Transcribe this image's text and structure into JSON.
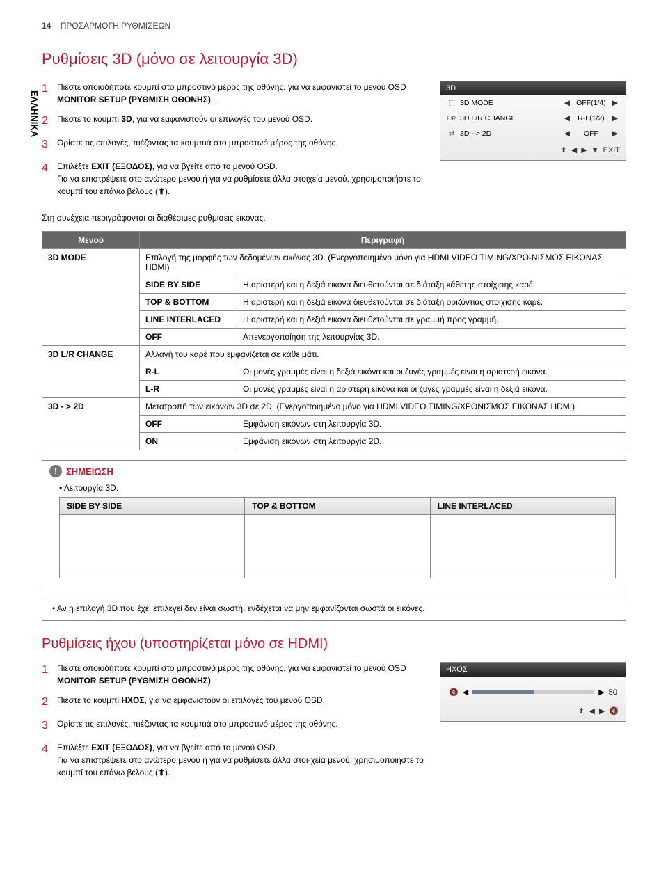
{
  "page": {
    "number": "14",
    "section": "ΠΡΟΣΑΡΜΟΓΗ ΡΥΘΜΙΣΕΩΝ"
  },
  "side_tab": "ΕΛΛΗΝΙΚΑ",
  "h1": "Ρυθμίσεις 3D (μόνο σε λειτουργία 3D)",
  "steps3d": [
    "Πιέστε οποιοδήποτε κουμπί στο μπροστινό μέρος της οθόνης, για να εμφανιστεί το μενού OSD ",
    "Πιέστε το κουμπί ",
    "Ορίστε τις επιλογές, πιέζοντας τα κουμπιά στο μπροστινό μέρος της οθόνης.",
    "Επιλέξτε "
  ],
  "steps3d_bold": {
    "s1b": "MONITOR SETUP (ΡΥΘΜΙΣΗ ΟΘΟΝΗΣ)",
    "s1c": ".",
    "s2b": "3D",
    "s2c": ", για να εμφανιστούν οι επιλογές του μενού OSD.",
    "s4b": "EXIT (ΕΞΟΔΟΣ)",
    "s4c": ", για να βγείτε από το μενού OSD.",
    "s4d": "Για να επιστρέψετε στο ανώτερο μενού ή για να ρυθμίσετε άλλα στοιχεία μενού, χρησιμοποιήστε το κουμπί του επάνω βέλους (",
    "s4e": ")."
  },
  "intro_after": "Στη συνέχεια περιγράφονται οι διαθέσιμες ρυθμίσεις εικόνας.",
  "osd3d": {
    "title": "3D",
    "rows": [
      {
        "icon": "⬚",
        "label": "3D MODE",
        "value": "OFF(1/4)"
      },
      {
        "icon": "L/R",
        "label": "3D L/R CHANGE",
        "value": "R-L(1/2)"
      },
      {
        "icon": "⇄",
        "label": "3D - > 2D",
        "value": "OFF"
      }
    ],
    "footer": {
      "exit": "EXIT"
    }
  },
  "table": {
    "h_menu": "Μενού",
    "h_desc": "Περιγραφή",
    "r1_menu": "3D MODE",
    "r1_desc": "Επιλογή της μορφής των δεδομένων εικόνας 3D. (Ενεργοποιημένο μόνο για HDMI VIDEO TIMING/ΧΡΟ-ΝΙΣΜΟΣ ΕΙΚΟΝΑΣ HDMI)",
    "r1_sbs": "SIDE BY SIDE",
    "r1_sbs_d": "Η αριστερή και η δεξιά εικόνα διευθετούνται σε διάταξη κάθετης στοίχισης καρέ.",
    "r1_tb": "TOP & BOTTOM",
    "r1_tb_d": "Η αριστερή και η δεξιά εικόνα διευθετούνται σε διάταξη οριζόντιας στοίχισης καρέ.",
    "r1_li": "LINE INTERLACED",
    "r1_li_d": "Η αριστερή και η δεξιά εικόνα διευθετούνται σε γραμμή προς γραμμή.",
    "r1_off": "OFF",
    "r1_off_d": "Απενεργοποίηση της λειτουργίας 3D.",
    "r2_menu": "3D L/R CHANGE",
    "r2_desc": "Αλλαγή του καρέ που εμφανίζεται σε κάθε μάτι.",
    "r2_rl": "R-L",
    "r2_rl_d": "Οι μονές γραμμές είναι η δεξιά εικόνα και οι ζυγές γραμμές είναι η αριστερή εικόνα.",
    "r2_lr": "L-R",
    "r2_lr_d": "Οι μονές γραμμές είναι η αριστερή εικόνα και οι ζυγές γραμμές είναι η δεξιά εικόνα.",
    "r3_menu": "3D - > 2D",
    "r3_desc": "Μετατροπή των εικόνων 3D σε 2D. (Ενεργοποιημένο μόνο για HDMI VIDEO TIMING/ΧΡΟΝΙΣΜΟΣ ΕΙΚΟΝΑΣ HDMI)",
    "r3_off": "OFF",
    "r3_off_d": "Εμφάνιση εικόνων στη λειτουργία 3D.",
    "r3_on": "ON",
    "r3_on_d": "Εμφάνιση εικόνων στη λειτουργία 2D."
  },
  "note": {
    "title": "ΣΗΜΕΙΩΣΗ",
    "bullet1": "Λειτουργία 3D.",
    "mode1": "SIDE BY SIDE",
    "mode2": "TOP & BOTTOM",
    "mode3": "LINE INTERLACED",
    "bullet2": "Αν η επιλογή 3D που έχει επιλεγεί δεν είναι σωστή, ενδέχεται να μην εμφανίζονται σωστά οι εικόνες."
  },
  "h2": "Ρυθμίσεις ήχου (υποστηρίζεται μόνο σε HDMI)",
  "steps_sound": [
    "Πιέστε οποιοδήποτε κουμπί στο μπροστινό μέρος της οθόνης, για να εμφανιστεί το μενού OSD ",
    "Πιέστε το κουμπί ",
    "Ορίστε τις επιλογές, πιέζοντας τα κουμπιά στο μπροστινό μέρος της οθόνης.",
    "Επιλέξτε "
  ],
  "steps_sound_bold": {
    "s1b": "MONITOR SETUP (ΡΥΘΜΙΣΗ ΟΘΟΝΗΣ)",
    "s1c": ".",
    "s2b": "ΗΧΟΣ",
    "s2c": ", για να εμφανιστούν οι επιλογές του μενού OSD.",
    "s4b": "EXIT (ΕΞΟΔΟΣ)",
    "s4c": ", για να βγείτε από το μενού OSD.",
    "s4d": "Για να επιστρέψετε στο ανώτερο μενού ή για να ρυθμίσετε άλλα στοι-χεία μενού, χρησιμοποιήστε το κουμπί του επάνω βέλους (",
    "s4e": ")."
  },
  "osd_sound": {
    "title": "ΗΧΟΣ",
    "value": "50"
  }
}
